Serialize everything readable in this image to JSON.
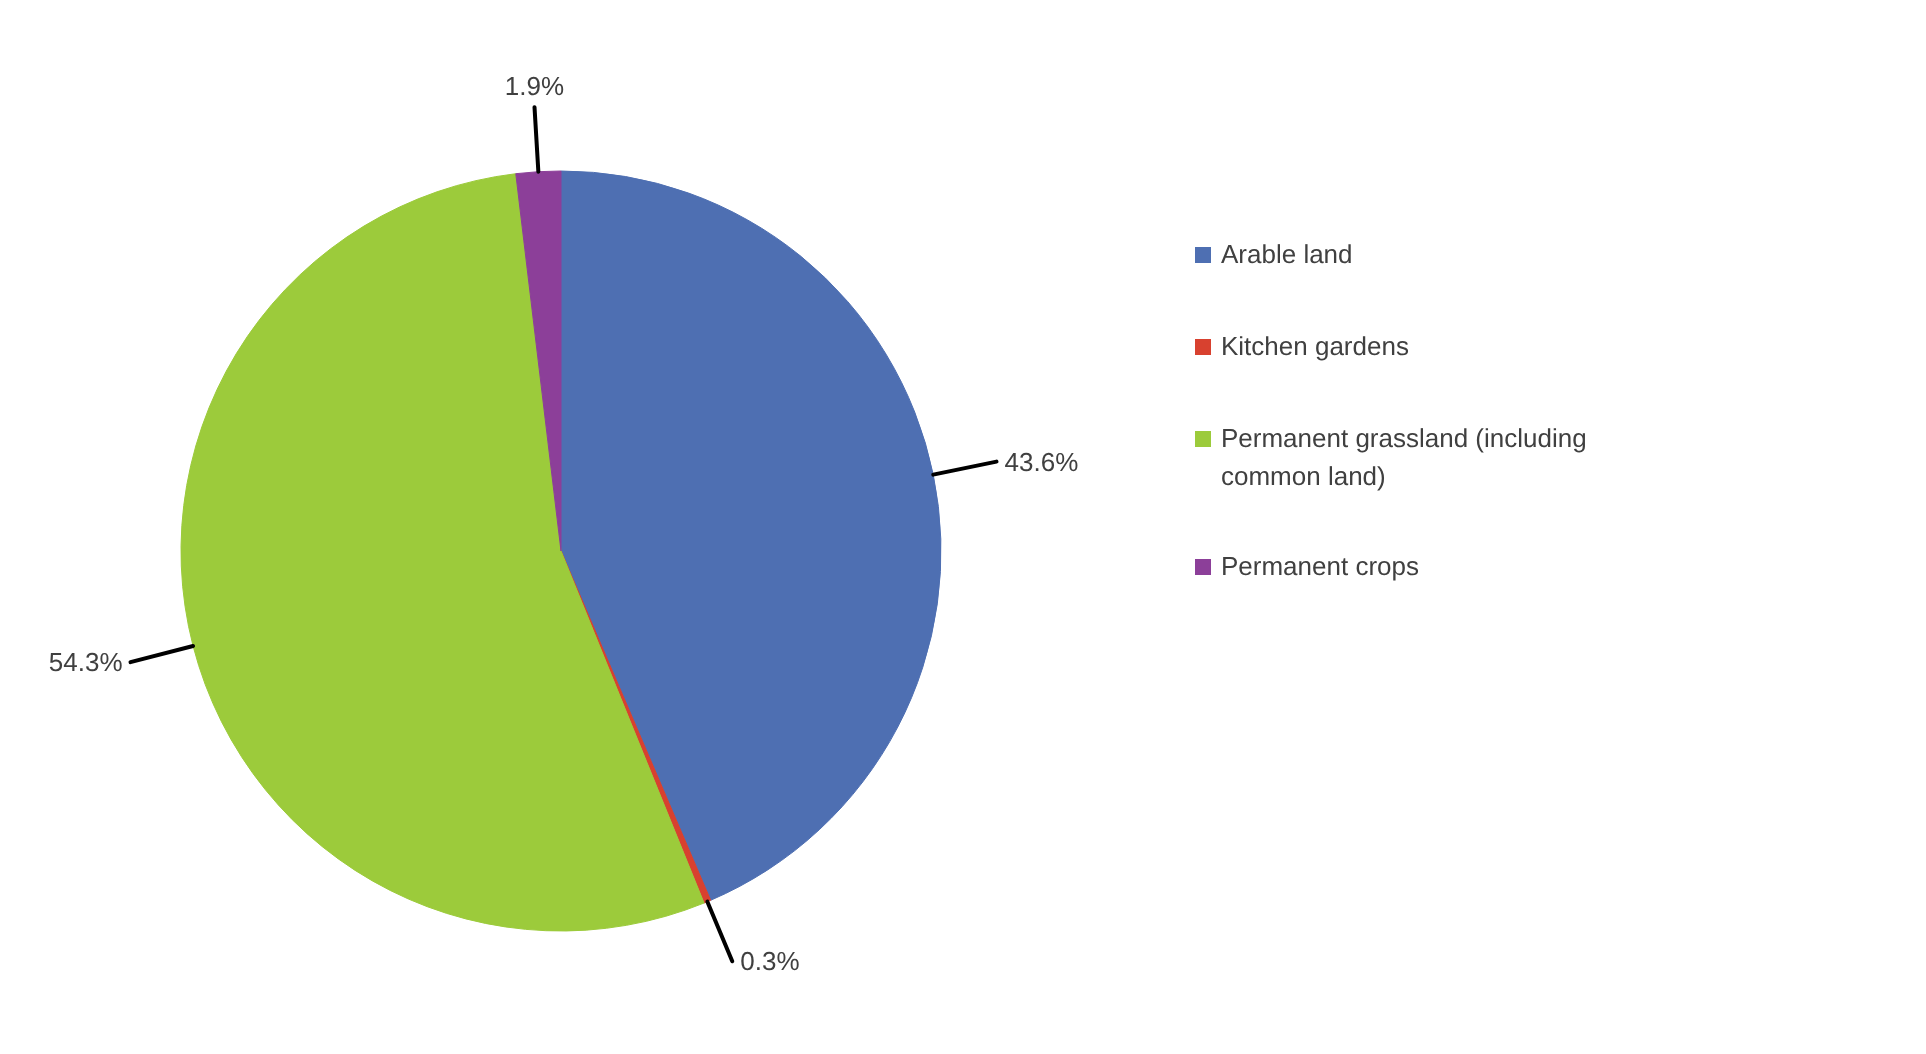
{
  "chart_data": {
    "type": "pie",
    "categories": [
      "Arable land",
      "Kitchen gardens",
      "Permanent grassland (including common land)",
      "Permanent crops"
    ],
    "values": [
      43.6,
      0.3,
      54.3,
      1.9
    ],
    "value_labels": [
      "43.6%",
      "0.3%",
      "54.3%",
      "1.9%"
    ],
    "colors": [
      "#4e6fb2",
      "#d8412f",
      "#9ccb3b",
      "#8c3f99"
    ],
    "legend": "right"
  }
}
